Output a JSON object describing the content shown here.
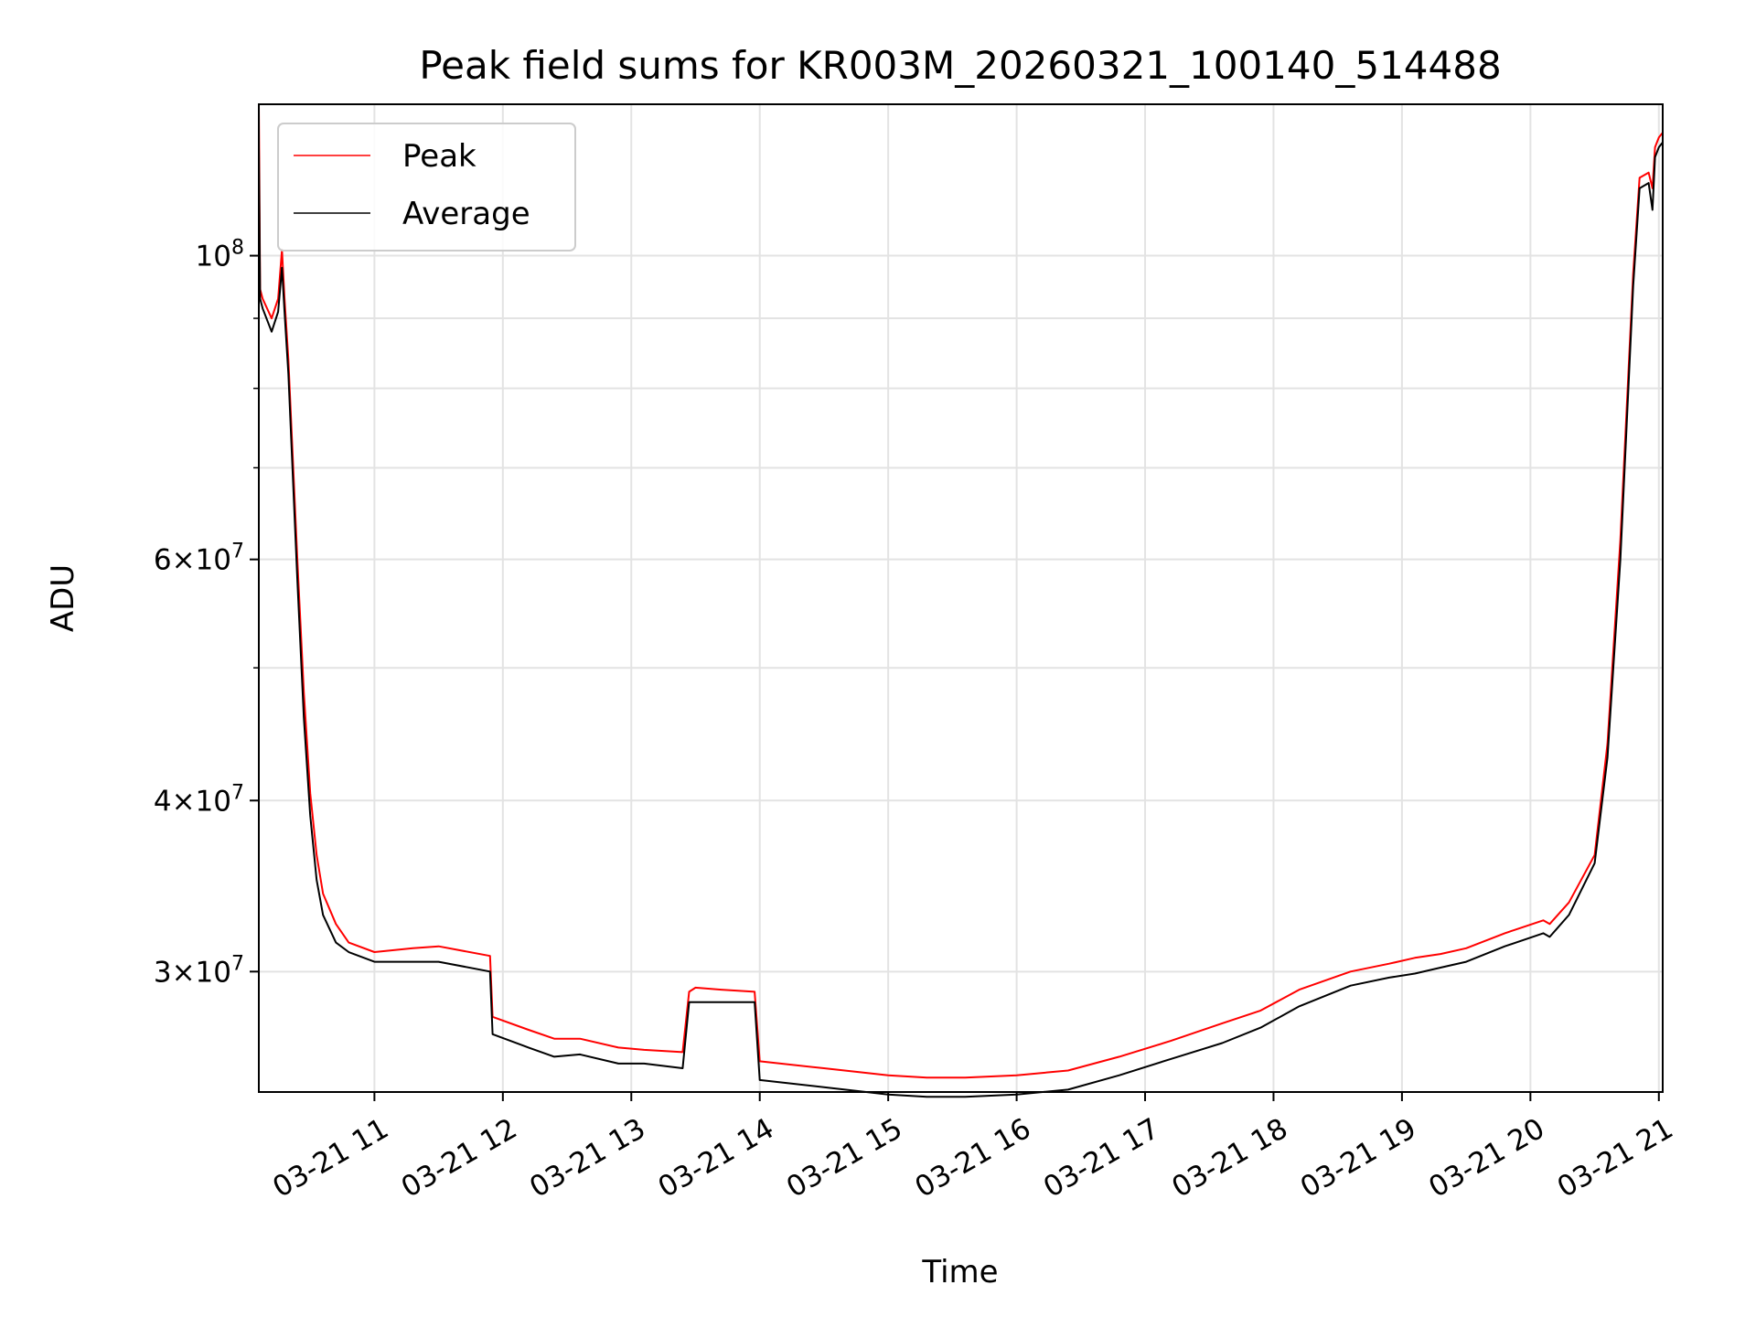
{
  "chart_data": {
    "type": "line",
    "title": "Peak field sums for KR003M_20260321_100140_514488",
    "xlabel": "Time",
    "ylabel": "ADU",
    "y_scale": "log",
    "ylim": [
      24500000,
      129000000
    ],
    "xlim_hours": [
      10.1,
      21.03
    ],
    "x_ticks": [
      {
        "value": 11,
        "label": "03-21 11"
      },
      {
        "value": 12,
        "label": "03-21 12"
      },
      {
        "value": 13,
        "label": "03-21 13"
      },
      {
        "value": 14,
        "label": "03-21 14"
      },
      {
        "value": 15,
        "label": "03-21 15"
      },
      {
        "value": 16,
        "label": "03-21 16"
      },
      {
        "value": 17,
        "label": "03-21 17"
      },
      {
        "value": 18,
        "label": "03-21 18"
      },
      {
        "value": 19,
        "label": "03-21 19"
      },
      {
        "value": 20,
        "label": "03-21 20"
      },
      {
        "value": 21,
        "label": "03-21 21"
      }
    ],
    "y_ticks": [
      {
        "value": 30000000,
        "mantissa": "3",
        "exponent": "7"
      },
      {
        "value": 40000000,
        "mantissa": "4",
        "exponent": "7"
      },
      {
        "value": 60000000,
        "mantissa": "6",
        "exponent": "7"
      },
      {
        "value": 100000000,
        "mantissa": "",
        "exponent": "8"
      }
    ],
    "y_minor_ticks": [
      50000000,
      70000000,
      80000000,
      90000000
    ],
    "y_tick_base": "10",
    "y_tick_times": "×",
    "grid": true,
    "legend_position": "top-left",
    "series": [
      {
        "name": "Average",
        "color": "#000000",
        "x": [
          10.1,
          10.11,
          10.13,
          10.2,
          10.25,
          10.28,
          10.3,
          10.33,
          10.4,
          10.45,
          10.5,
          10.55,
          10.6,
          10.7,
          10.8,
          11.0,
          11.3,
          11.5,
          11.9,
          11.92,
          12.2,
          12.4,
          12.6,
          12.9,
          13.1,
          13.4,
          13.45,
          13.5,
          13.7,
          13.96,
          14.0,
          14.5,
          15.0,
          15.3,
          15.6,
          16.0,
          16.4,
          16.8,
          17.2,
          17.6,
          17.9,
          18.2,
          18.6,
          18.9,
          19.1,
          19.3,
          19.5,
          19.8,
          20.1,
          20.15,
          20.3,
          20.5,
          20.6,
          20.7,
          20.8,
          20.85,
          20.92,
          20.95,
          20.97,
          21.0,
          21.03
        ],
        "values": [
          120000000,
          93000000,
          91500000,
          88000000,
          91000000,
          98000000,
          91000000,
          82000000,
          58000000,
          46000000,
          39000000,
          35000000,
          33000000,
          31500000,
          31000000,
          30500000,
          30500000,
          30500000,
          30000000,
          27000000,
          26400000,
          26000000,
          26100000,
          25700000,
          25700000,
          25500000,
          28500000,
          28500000,
          28500000,
          28500000,
          25000000,
          24700000,
          24400000,
          24300000,
          24300000,
          24400000,
          24600000,
          25200000,
          25900000,
          26600000,
          27300000,
          28300000,
          29300000,
          29700000,
          29900000,
          30200000,
          30500000,
          31300000,
          32000000,
          31800000,
          33000000,
          36000000,
          43000000,
          60000000,
          95000000,
          112000000,
          113000000,
          108000000,
          118000000,
          120000000,
          121000000
        ]
      },
      {
        "name": "Peak",
        "color": "#ff0000",
        "x": [
          10.1,
          10.11,
          10.13,
          10.2,
          10.25,
          10.28,
          10.3,
          10.33,
          10.4,
          10.45,
          10.5,
          10.55,
          10.6,
          10.7,
          10.8,
          11.0,
          11.3,
          11.5,
          11.9,
          11.92,
          12.2,
          12.4,
          12.6,
          12.9,
          13.1,
          13.4,
          13.45,
          13.5,
          13.7,
          13.96,
          14.0,
          14.5,
          15.0,
          15.3,
          15.6,
          16.0,
          16.4,
          16.8,
          17.2,
          17.6,
          17.9,
          18.2,
          18.6,
          18.9,
          19.1,
          19.3,
          19.5,
          19.8,
          20.1,
          20.15,
          20.3,
          20.5,
          20.6,
          20.7,
          20.8,
          20.85,
          20.92,
          20.95,
          20.97,
          21.0,
          21.03
        ],
        "values": [
          129000000,
          94500000,
          93000000,
          90000000,
          93000000,
          101000000,
          93000000,
          84000000,
          60000000,
          48000000,
          40500000,
          36500000,
          34200000,
          32500000,
          31500000,
          31000000,
          31200000,
          31300000,
          30800000,
          27800000,
          27200000,
          26800000,
          26800000,
          26400000,
          26300000,
          26200000,
          29000000,
          29200000,
          29100000,
          29000000,
          25800000,
          25500000,
          25200000,
          25100000,
          25100000,
          25200000,
          25400000,
          26000000,
          26700000,
          27500000,
          28100000,
          29100000,
          30000000,
          30400000,
          30700000,
          30900000,
          31200000,
          32000000,
          32700000,
          32500000,
          33700000,
          36500000,
          44000000,
          62000000,
          97000000,
          114000000,
          115000000,
          112000000,
          120000000,
          122000000,
          123000000
        ]
      }
    ]
  }
}
